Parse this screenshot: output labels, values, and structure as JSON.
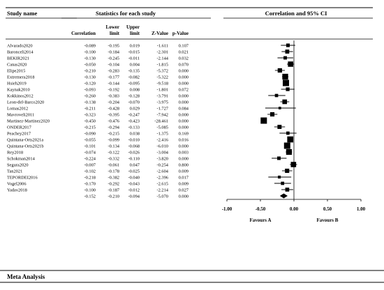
{
  "chart_data": {
    "type": "forest",
    "headers": {
      "study_name": "Study name",
      "stats_group": "Statistics for each study",
      "ci_group": "Correlation and 95% CI",
      "columns": [
        "Correlation",
        "Lower limit",
        "Upper limit",
        "Z-Value",
        "p-Value"
      ]
    },
    "studies": [
      {
        "name": "Alvarado2020",
        "correlation": "-0.089",
        "lower": "-0.195",
        "upper": "0.019",
        "z": "-1.611",
        "p": "0.107"
      },
      {
        "name": "Baronceli2014",
        "correlation": "-0.100",
        "lower": "-0.184",
        "upper": "-0.015",
        "z": "-2.301",
        "p": "0.021"
      },
      {
        "name": "BEKIR2021",
        "correlation": "-0.130",
        "lower": "-0.245",
        "upper": "-0.011",
        "z": "-2.144",
        "p": "0.032"
      },
      {
        "name": "Canas2020",
        "correlation": "-0.050",
        "lower": "-0.104",
        "upper": "0.004",
        "z": "-1.815",
        "p": "0.070"
      },
      {
        "name": "Elipe2015",
        "correlation": "-0.210",
        "lower": "-0.283",
        "upper": "-0.135",
        "z": "-5.372",
        "p": "0.000"
      },
      {
        "name": "Extremera2018",
        "correlation": "-0.130",
        "lower": "-0.177",
        "upper": "-0.082",
        "z": "-5.322",
        "p": "0.000"
      },
      {
        "name": "Hsieh2019",
        "correlation": "-0.120",
        "lower": "-0.144",
        "upper": "-0.095",
        "z": "-9.518",
        "p": "0.000"
      },
      {
        "name": "Kaynak2010",
        "correlation": "-0.093",
        "lower": "-0.192",
        "upper": "0.008",
        "z": "-1.801",
        "p": "0.072"
      },
      {
        "name": "Kokkinos2012",
        "correlation": "-0.260",
        "lower": "-0.383",
        "upper": "-0.128",
        "z": "-3.791",
        "p": "0.000"
      },
      {
        "name": "Leon-del-Barco2020",
        "correlation": "-0.138",
        "lower": "-0.204",
        "upper": "-0.070",
        "z": "-3.975",
        "p": "0.000"
      },
      {
        "name": "Lomas2012",
        "correlation": "-0.211",
        "lower": "-0.428",
        "upper": "0.029",
        "z": "-1.727",
        "p": "0.084"
      },
      {
        "name": "Mavroveli2011",
        "correlation": "-0.323",
        "lower": "-0.395",
        "upper": "-0.247",
        "z": "-7.942",
        "p": "0.000"
      },
      {
        "name": "Martinez-Martinez2020",
        "correlation": "-0.450",
        "lower": "-0.476",
        "upper": "-0.423",
        "z": "-28.461",
        "p": "0.000"
      },
      {
        "name": "ONDER2017",
        "correlation": "-0.215",
        "lower": "-0.294",
        "upper": "-0.133",
        "z": "-5.085",
        "p": "0.000"
      },
      {
        "name": "Peachey2017",
        "correlation": "-0.090",
        "lower": "-0.215",
        "upper": "0.038",
        "z": "-1.375",
        "p": "0.169"
      },
      {
        "name": "Quintana-Orts2021a",
        "correlation": "-0.055",
        "lower": "-0.099",
        "upper": "-0.010",
        "z": "-2.416",
        "p": "0.016"
      },
      {
        "name": "Quintana-Orts2021b",
        "correlation": "-0.101",
        "lower": "-0.134",
        "upper": "-0.068",
        "z": "-6.010",
        "p": "0.000"
      },
      {
        "name": "Rey2018",
        "correlation": "-0.074",
        "lower": "-0.122",
        "upper": "-0.026",
        "z": "-3.004",
        "p": "0.003"
      },
      {
        "name": "Schokman2014",
        "correlation": "-0.224",
        "lower": "-0.332",
        "upper": "-0.110",
        "z": "-3.820",
        "p": "0.000"
      },
      {
        "name": "Segura2020",
        "correlation": "-0.007",
        "lower": "-0.061",
        "upper": "0.047",
        "z": "-0.254",
        "p": "0.800"
      },
      {
        "name": "Tan2021",
        "correlation": "-0.102",
        "lower": "-0.178",
        "upper": "-0.025",
        "z": "-2.604",
        "p": "0.009"
      },
      {
        "name": "TEPORDEI2016",
        "correlation": "-0.218",
        "lower": "-0.382",
        "upper": "-0.040",
        "z": "-2.396",
        "p": "0.017"
      },
      {
        "name": "Vogel2006",
        "correlation": "-0.170",
        "lower": "-0.292",
        "upper": "-0.043",
        "z": "-2.615",
        "p": "0.009"
      },
      {
        "name": "Yadav2018",
        "correlation": "-0.100",
        "lower": "-0.187",
        "upper": "-0.012",
        "z": "-2.214",
        "p": "0.027"
      }
    ],
    "pooled": {
      "correlation": "-0.152",
      "lower": "-0.210",
      "upper": "-0.094",
      "z": "-5.070",
      "p": "0.000"
    },
    "x_axis": {
      "range": [
        -1.0,
        1.0
      ],
      "ticks": [
        "-1.00",
        "-0.50",
        "0.00",
        "0.50",
        "1.00"
      ],
      "left_label": "Favours A",
      "right_label": "Favours B"
    }
  },
  "footer": {
    "title": "Meta Analysis"
  }
}
